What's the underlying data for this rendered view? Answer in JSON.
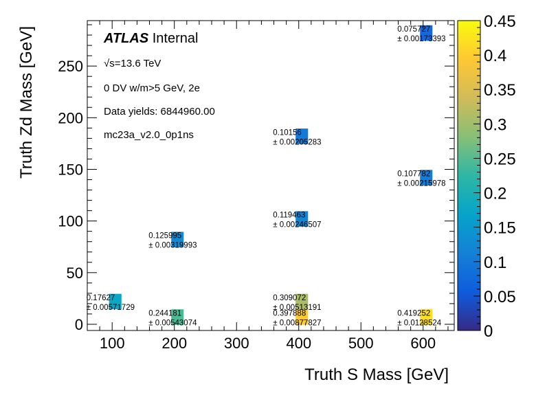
{
  "chart_data": {
    "type": "heatmap",
    "xlabel": "Truth S Mass [GeV]",
    "ylabel": "Truth Zd Mass [GeV]",
    "xlim": [
      60,
      650
    ],
    "ylim": [
      -6,
      294
    ],
    "xticks": [
      100,
      200,
      300,
      400,
      500,
      600
    ],
    "yticks": [
      0,
      50,
      100,
      150,
      200,
      250
    ],
    "colorbar": {
      "min": 0,
      "max": 0.45,
      "ticks": [
        "0",
        "0.05",
        "0.1",
        "0.15",
        "0.2",
        "0.25",
        "0.3",
        "0.35",
        "0.4",
        "0.45"
      ],
      "palette": [
        "#352a87",
        "#0f5cdd",
        "#1481d6",
        "#06a4ca",
        "#2eb7a4",
        "#87bf77",
        "#d1bb59",
        "#fec832",
        "#f9fb0e"
      ]
    },
    "annotations": [
      {
        "html": "<tspan font-weight=\"bold\" font-style=\"italic\">ATLAS</tspan> Internal",
        "plain": "ATLAS Internal"
      },
      {
        "plain": "√s=13.6 TeV"
      },
      {
        "plain": "0 DV w/m>5 GeV, 2e"
      },
      {
        "plain": "Data yields: 6844960.00"
      },
      {
        "plain": "mc23a_v2.0_0p1ns"
      }
    ],
    "cells": [
      {
        "x": 105,
        "y": 22,
        "value": 0.17627,
        "label": "0.17627",
        "error": "± 0.00571729"
      },
      {
        "x": 205,
        "y": 82,
        "value": 0.125995,
        "label": "0.125995",
        "error": "± 0.00319993"
      },
      {
        "x": 205,
        "y": 7,
        "value": 0.244181,
        "label": "0.244181",
        "error": "± 0.00543074"
      },
      {
        "x": 405,
        "y": 182,
        "value": 0.10156,
        "label": "0.10156",
        "error": "± 0.00205283"
      },
      {
        "x": 405,
        "y": 102,
        "value": 0.119463,
        "label": "0.119463",
        "error": "± 0.00246507"
      },
      {
        "x": 405,
        "y": 22,
        "value": 0.309072,
        "label": "0.309072",
        "error": "± 0.00513191"
      },
      {
        "x": 405,
        "y": 7,
        "value": 0.397888,
        "label": "0.397888",
        "error": "± 0.00877827"
      },
      {
        "x": 605,
        "y": 282,
        "value": 0.075727,
        "label": "0.075727",
        "error": "± 0.00173393"
      },
      {
        "x": 605,
        "y": 142,
        "value": 0.107782,
        "label": "0.107782",
        "error": "± 0.00215978"
      },
      {
        "x": 605,
        "y": 7,
        "value": 0.419252,
        "label": "0.419252",
        "error": "± 0.0128524"
      }
    ]
  }
}
